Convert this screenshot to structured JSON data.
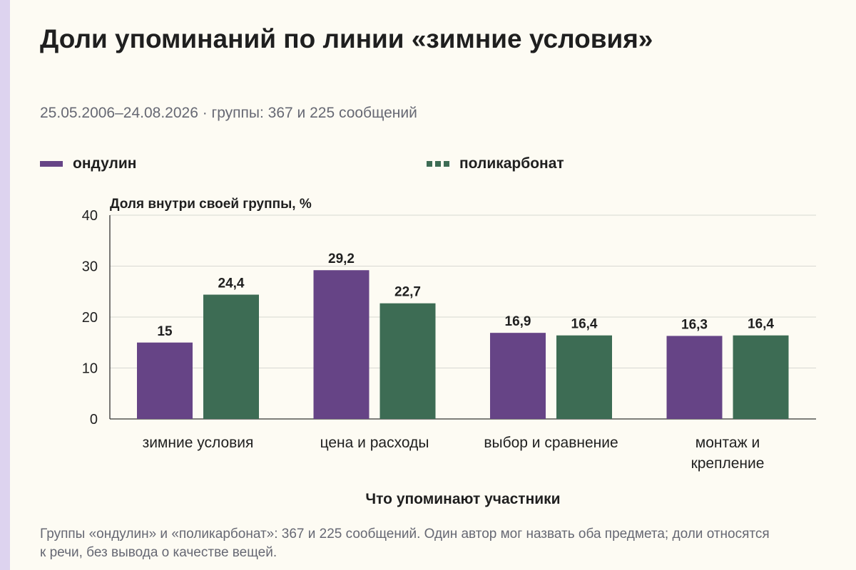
{
  "header": {
    "title": "Доли упоминаний по линии «зимние условия»",
    "subtitle": "25.05.2006–24.08.2026 · группы: 367 и 225 сообщений"
  },
  "legend": {
    "items": [
      {
        "label": "ондулин",
        "color": "#664486",
        "style": "solid"
      },
      {
        "label": "поликарбонат",
        "color": "#3d6c54",
        "style": "dashed"
      }
    ]
  },
  "footnote": "Группы «ондулин» и «поликарбонат»: 367 и 225 сообщений. Один автор мог назвать оба предмета; доли относятся к речи, без вывода о качестве вещей.",
  "chart_data": {
    "type": "bar",
    "xlabel": "Что упоминают участники",
    "ylabel": "Доля внутри своей группы, %",
    "ylim": [
      0,
      40
    ],
    "yticks": [
      "0",
      "10",
      "20",
      "30",
      "40"
    ],
    "grid": true,
    "legend_position": "top",
    "categories": [
      [
        "зимние условия"
      ],
      [
        "цена и расходы"
      ],
      [
        "выбор и сравнение"
      ],
      [
        "монтаж и",
        "крепление"
      ]
    ],
    "series": [
      {
        "name": "ондулин",
        "color": "#664486",
        "values": [
          15,
          29.2,
          16.9,
          16.3
        ],
        "labels": [
          "15",
          "29,2",
          "16,9",
          "16,3"
        ]
      },
      {
        "name": "поликарбонат",
        "color": "#3d6c54",
        "values": [
          24.4,
          22.7,
          16.4,
          16.4
        ],
        "labels": [
          "24,4",
          "22,7",
          "16,4",
          "16,4"
        ]
      }
    ]
  }
}
